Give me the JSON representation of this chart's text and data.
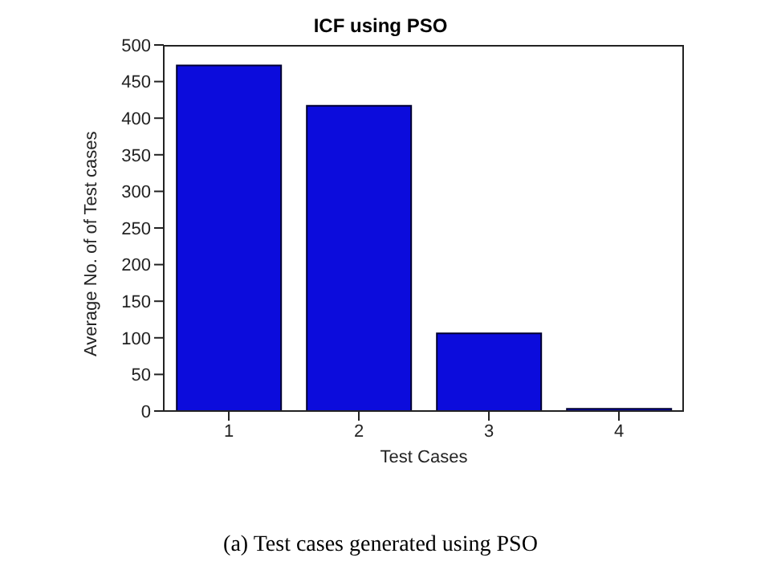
{
  "chart_data": {
    "type": "bar",
    "title": "ICF using PSO",
    "xlabel": "Test Cases",
    "ylabel": "Average No. of  of Test cases",
    "categories": [
      "1",
      "2",
      "3",
      "4"
    ],
    "values": [
      472,
      417,
      106,
      3
    ],
    "color": "#0c0cdc",
    "ylim": [
      0,
      500
    ],
    "yticks": [
      0,
      50,
      100,
      150,
      200,
      250,
      300,
      350,
      400,
      450,
      500
    ],
    "grid": false,
    "legend": false,
    "annotations": [
      "(a) Test cases generated using PSO"
    ]
  }
}
